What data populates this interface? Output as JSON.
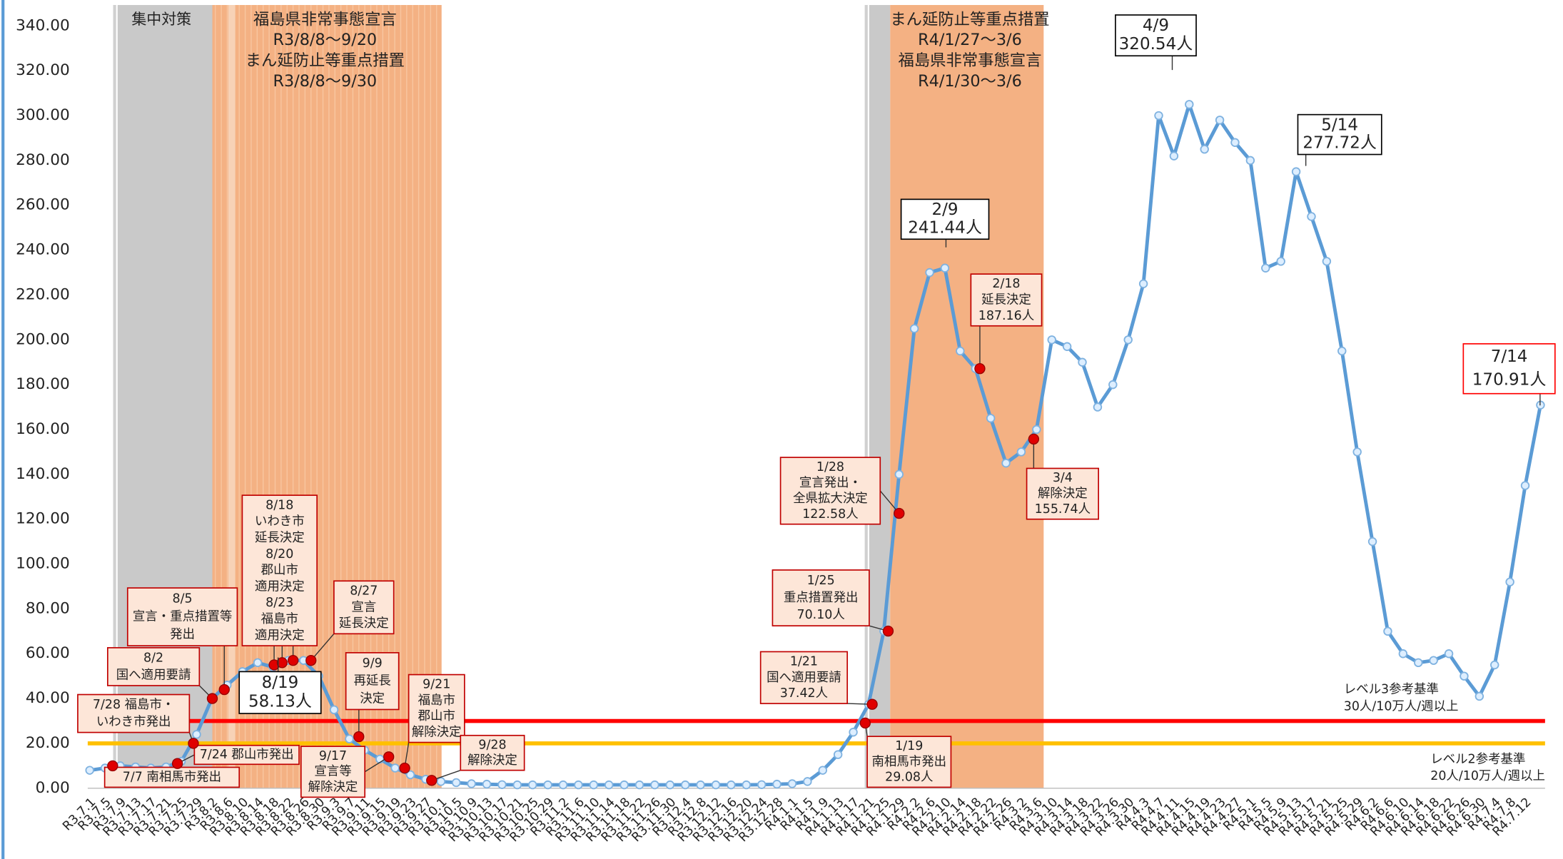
{
  "chart_data": {
    "type": "line",
    "categories": [
      "R3.7.1",
      "R3.7.5",
      "R3.7.9",
      "R3.7.13",
      "R3.7.17",
      "R3.7.21",
      "R3.7.25",
      "R3.7.29",
      "R3.8.2",
      "R3.8.6",
      "R3.8.10",
      "R3.8.14",
      "R3.8.18",
      "R3.8.22",
      "R3.8.26",
      "R3.8.30",
      "R3.9.3",
      "R3.9.7",
      "R3.9.11",
      "R3.9.15",
      "R3.9.19",
      "R3.9.23",
      "R3.9.27",
      "R3.10.1",
      "R3.10.5",
      "R3.10.9",
      "R3.10.13",
      "R3.10.17",
      "R3.10.21",
      "R3.10.25",
      "R3.10.29",
      "R3.11.2",
      "R3.11.6",
      "R3.11.10",
      "R3.11.14",
      "R3.11.18",
      "R3.11.22",
      "R3.11.26",
      "R3.11.30",
      "R3.12.4",
      "R3.12.8",
      "R3.12.12",
      "R3.12.16",
      "R3.12.20",
      "R3.12.24",
      "R3.12.28",
      "R4.1.1",
      "R4.1.5",
      "R4.1.9",
      "R4.1.13",
      "R4.1.17",
      "R4.1.21",
      "R4.1.25",
      "R4.1.29",
      "R4.2.2",
      "R4.2.6",
      "R4.2.10",
      "R4.2.14",
      "R4.2.18",
      "R4.2.22",
      "R4.2.26",
      "R4.3.2",
      "R4.3.6",
      "R4.3.10",
      "R4.3.14",
      "R4.3.18",
      "R4.3.22",
      "R4.3.26",
      "R4.3.30",
      "R4.4.3",
      "R4.4.7",
      "R4.4.11",
      "R4.4.15",
      "R4.4.19",
      "R4.4.23",
      "R4.4.27",
      "R4.5.1",
      "R4.5.5",
      "R4.5.9",
      "R4.5.13",
      "R4.5.17",
      "R4.5.21",
      "R4.5.25",
      "R4.5.29",
      "R4.6.2",
      "R4.6.6",
      "R4.6.10",
      "R4.6.14",
      "R4.6.18",
      "R4.6.22",
      "R4.6.26",
      "R4.6.30",
      "R4.7.4",
      "R4.7.8",
      "R4.7.12",
      null
    ],
    "series": [
      {
        "color": "#5b9bd5",
        "values": [
          8,
          9,
          10,
          9.5,
          9,
          9.5,
          12,
          24,
          40,
          46,
          52,
          56,
          54,
          57,
          57,
          50,
          35,
          22,
          17,
          13,
          9,
          6,
          4,
          3,
          2.5,
          2,
          1.8,
          1.6,
          1.5,
          1.5,
          1.5,
          1.5,
          1.5,
          1.5,
          1.5,
          1.5,
          1.5,
          1.5,
          1.5,
          1.5,
          1.5,
          1.5,
          1.5,
          1.5,
          1.6,
          1.8,
          2,
          3,
          8,
          15,
          25,
          37.42,
          70.1,
          140,
          205,
          230,
          232,
          195,
          187.16,
          165,
          145,
          150,
          160,
          200,
          197,
          190,
          170,
          180,
          200,
          225,
          300,
          282,
          305,
          285,
          298,
          288,
          280,
          232,
          235,
          275,
          255,
          235,
          195,
          150,
          110,
          70,
          60,
          56,
          57,
          60,
          50,
          41,
          55,
          92,
          135,
          170.91
        ]
      }
    ],
    "ylim": [
      0,
      340
    ],
    "yticks": [
      {
        "value": 0,
        "label": "0.00"
      },
      {
        "value": 20,
        "label": "20.00"
      },
      {
        "value": 40,
        "label": "40.00"
      },
      {
        "value": 60,
        "label": "60.00"
      },
      {
        "value": 80,
        "label": "80.00"
      },
      {
        "value": 100,
        "label": "100.00"
      },
      {
        "value": 120,
        "label": "120.00"
      },
      {
        "value": 140,
        "label": "140.00"
      },
      {
        "value": 160,
        "label": "160.00"
      },
      {
        "value": 180,
        "label": "180.00"
      },
      {
        "value": 200,
        "label": "200.00"
      },
      {
        "value": 220,
        "label": "220.00"
      },
      {
        "value": 240,
        "label": "240.00"
      },
      {
        "value": 260,
        "label": "260.00"
      },
      {
        "value": 280,
        "label": "280.00"
      },
      {
        "value": 300,
        "label": "300.00"
      },
      {
        "value": 320,
        "label": "320.00"
      },
      {
        "value": 340,
        "label": "340.00"
      }
    ],
    "reference_lines": [
      {
        "value": 30,
        "color": "#ff0000",
        "lines": [
          "レベル3参考基準",
          "30人/10万人/週以上"
        ]
      },
      {
        "value": 20,
        "color": "#ffc000",
        "lines": [
          "レベル2参考基準",
          "20人/10万人/週以上"
        ]
      }
    ],
    "periods": [
      {
        "lines": [
          "集中対策"
        ]
      },
      {
        "lines": [
          "福島県非常事態宣言",
          "R3/8/8～9/20",
          "まん延防止等重点措置",
          "R3/8/8～9/30"
        ]
      },
      {
        "lines": [
          "まん延防止等重点措置",
          "R4/1/27～3/6",
          "福島県非常事態宣言",
          "R4/1/30～3/6"
        ]
      }
    ],
    "annotations": [
      {
        "lines": [
          "7/7 南相馬市発出"
        ],
        "values": [
          10
        ],
        "marker_color": "#e00000"
      },
      {
        "lines": [
          "7/24 郡山市発出"
        ],
        "values": [
          11
        ],
        "marker_color": "#e00000"
      },
      {
        "lines": [
          "7/28 福島市・",
          "いわき市発出"
        ],
        "values": [
          20
        ],
        "marker_color": "#e00000"
      },
      {
        "lines": [
          "8/2",
          "国へ適用要請"
        ],
        "values": [
          40
        ],
        "marker_color": "#e00000"
      },
      {
        "lines": [
          "8/5",
          "宣言・重点措置等",
          "発出"
        ],
        "values": [
          44
        ],
        "marker_color": "#e00000"
      },
      {
        "lines": [
          "8/18",
          "いわき市",
          "延長決定",
          "8/20",
          "郡山市",
          "適用決定",
          "8/23",
          "福島市",
          "適用決定"
        ],
        "values": [
          55,
          56,
          57
        ],
        "marker_color": "#e00000"
      },
      {
        "lines": [
          "8/19"
        ],
        "values": [
          58.13
        ],
        "value_label": "58.13人"
      },
      {
        "lines": [
          "8/27",
          "宣言",
          "延長決定"
        ],
        "values": [
          57
        ],
        "marker_color": "#e00000"
      },
      {
        "lines": [
          "9/9",
          "再延長",
          "決定"
        ],
        "values": [
          23
        ],
        "marker_color": "#e00000"
      },
      {
        "lines": [
          "9/17",
          "宣言等",
          "解除決定"
        ],
        "values": [
          14
        ],
        "marker_color": "#e00000"
      },
      {
        "lines": [
          "9/21",
          "福島市",
          "郡山市",
          "解除決定"
        ],
        "values": [
          9
        ],
        "marker_color": "#e00000"
      },
      {
        "lines": [
          "9/28",
          "解除決定"
        ],
        "values": [
          3.5
        ],
        "marker_color": "#e00000"
      },
      {
        "lines": [
          "1/19",
          "南相馬市発出"
        ],
        "values": [
          29.08
        ],
        "value_label": "29.08人",
        "marker_color": "#e00000"
      },
      {
        "lines": [
          "1/21",
          "国へ適用要請"
        ],
        "values": [
          37.42
        ],
        "value_label": "37.42人",
        "marker_color": "#e00000"
      },
      {
        "lines": [
          "1/25",
          "重点措置発出"
        ],
        "values": [
          70.1
        ],
        "value_label": "70.10人",
        "marker_color": "#e00000"
      },
      {
        "lines": [
          "1/28",
          "宣言発出・",
          "全県拡大決定"
        ],
        "values": [
          122.58
        ],
        "value_label": "122.58人",
        "marker_color": "#e00000"
      },
      {
        "lines": [
          "2/9"
        ],
        "values": [
          241.44
        ],
        "value_label": "241.44人"
      },
      {
        "lines": [
          "2/18",
          "延長決定"
        ],
        "values": [
          187.16
        ],
        "value_label": "187.16人",
        "marker_color": "#e00000"
      },
      {
        "lines": [
          "3/4",
          "解除決定"
        ],
        "values": [
          155.74
        ],
        "value_label": "155.74人",
        "marker_color": "#e00000"
      },
      {
        "lines": [
          "4/9"
        ],
        "values": [
          320.54
        ],
        "value_label": "320.54人"
      },
      {
        "lines": [
          "5/14"
        ],
        "values": [
          277.72
        ],
        "value_label": "277.72人"
      },
      {
        "lines": [
          "7/14"
        ],
        "values": [
          170.91
        ],
        "value_label": "170.91人",
        "text_color": "#ff0000"
      }
    ]
  }
}
